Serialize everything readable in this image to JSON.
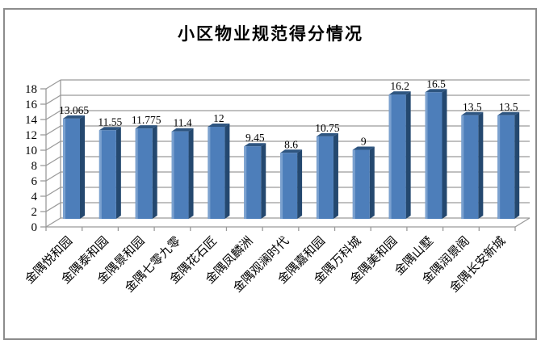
{
  "window": {
    "background_color": "#ffffff",
    "frame_border_color": "#8c8c8c"
  },
  "chart_data": {
    "type": "bar",
    "style": "3d-column",
    "title": "小区物业规范得分情况",
    "xlabel": "",
    "ylabel": "",
    "categories": [
      "金隅悦和园",
      "金隅泰和园",
      "金隅景和园",
      "金隅七零九零",
      "金隅花石匠",
      "金隅凤麟洲",
      "金隅观澜时代",
      "金隅嘉和园",
      "金隅万科城",
      "金隅美和园",
      "金隅山墅",
      "金隅润景阁",
      "金隅长安新城"
    ],
    "values": [
      13.065,
      11.55,
      11.775,
      11.4,
      12,
      9.45,
      8.6,
      10.75,
      9,
      16.2,
      16.5,
      13.5,
      13.5
    ],
    "value_labels": [
      "13.065",
      "11.55",
      "11.775",
      "11.4",
      "12",
      "9.45",
      "8.6",
      "10.75",
      "9",
      "16.2",
      "16.5",
      "13.5",
      "13.5"
    ],
    "ylim": [
      0,
      18
    ],
    "ytick_step": 2,
    "ytick_labels": [
      "0",
      "2",
      "4",
      "6",
      "8",
      "10",
      "12",
      "14",
      "16",
      "18"
    ],
    "grid": true,
    "legend": "none",
    "colors": {
      "bar_face": "#4d7eba",
      "bar_highlight": "#7ba1cf",
      "bar_side": "#24486f",
      "bar_top": "#2e5580",
      "gridline": "#9a9a9a",
      "axis_line": "#9a9a9a",
      "text": "#000000"
    }
  }
}
